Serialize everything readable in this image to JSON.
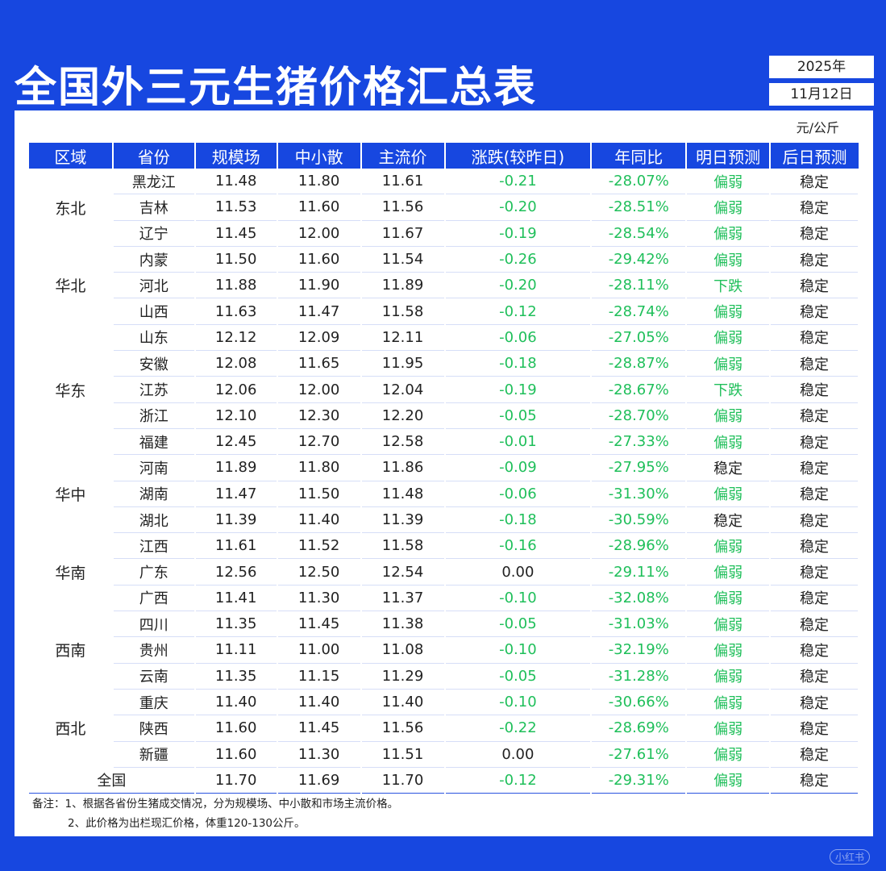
{
  "title": "全国外三元生猪价格汇总表",
  "date": {
    "year": "2025年",
    "day": "11月12日"
  },
  "unit": "元/公斤",
  "headers": [
    "区域",
    "省份",
    "规模场",
    "中小散",
    "主流价",
    "涨跌(较昨日)",
    "年同比",
    "明日预测",
    "后日预测"
  ],
  "regions": [
    {
      "name": "东北",
      "rows": [
        {
          "province": "黑龙江",
          "large": "11.48",
          "small": "11.80",
          "main": "11.61",
          "change": "-0.21",
          "yoy": "-28.07%",
          "tomorrow": "偏弱",
          "after": "稳定"
        },
        {
          "province": "吉林",
          "large": "11.53",
          "small": "11.60",
          "main": "11.56",
          "change": "-0.20",
          "yoy": "-28.51%",
          "tomorrow": "偏弱",
          "after": "稳定"
        },
        {
          "province": "辽宁",
          "large": "11.45",
          "small": "12.00",
          "main": "11.67",
          "change": "-0.19",
          "yoy": "-28.54%",
          "tomorrow": "偏弱",
          "after": "稳定"
        }
      ]
    },
    {
      "name": "华北",
      "rows": [
        {
          "province": "内蒙",
          "large": "11.50",
          "small": "11.60",
          "main": "11.54",
          "change": "-0.26",
          "yoy": "-29.42%",
          "tomorrow": "偏弱",
          "after": "稳定"
        },
        {
          "province": "河北",
          "large": "11.88",
          "small": "11.90",
          "main": "11.89",
          "change": "-0.20",
          "yoy": "-28.11%",
          "tomorrow": "下跌",
          "after": "稳定"
        },
        {
          "province": "山西",
          "large": "11.63",
          "small": "11.47",
          "main": "11.58",
          "change": "-0.12",
          "yoy": "-28.74%",
          "tomorrow": "偏弱",
          "after": "稳定"
        }
      ]
    },
    {
      "name": "华东",
      "rows": [
        {
          "province": "山东",
          "large": "12.12",
          "small": "12.09",
          "main": "12.11",
          "change": "-0.06",
          "yoy": "-27.05%",
          "tomorrow": "偏弱",
          "after": "稳定"
        },
        {
          "province": "安徽",
          "large": "12.08",
          "small": "11.65",
          "main": "11.95",
          "change": "-0.18",
          "yoy": "-28.87%",
          "tomorrow": "偏弱",
          "after": "稳定"
        },
        {
          "province": "江苏",
          "large": "12.06",
          "small": "12.00",
          "main": "12.04",
          "change": "-0.19",
          "yoy": "-28.67%",
          "tomorrow": "下跌",
          "after": "稳定"
        },
        {
          "province": "浙江",
          "large": "12.10",
          "small": "12.30",
          "main": "12.20",
          "change": "-0.05",
          "yoy": "-28.70%",
          "tomorrow": "偏弱",
          "after": "稳定"
        },
        {
          "province": "福建",
          "large": "12.45",
          "small": "12.70",
          "main": "12.58",
          "change": "-0.01",
          "yoy": "-27.33%",
          "tomorrow": "偏弱",
          "after": "稳定"
        }
      ]
    },
    {
      "name": "华中",
      "rows": [
        {
          "province": "河南",
          "large": "11.89",
          "small": "11.80",
          "main": "11.86",
          "change": "-0.09",
          "yoy": "-27.95%",
          "tomorrow": "稳定",
          "after": "稳定"
        },
        {
          "province": "湖南",
          "large": "11.47",
          "small": "11.50",
          "main": "11.48",
          "change": "-0.06",
          "yoy": "-31.30%",
          "tomorrow": "偏弱",
          "after": "稳定"
        },
        {
          "province": "湖北",
          "large": "11.39",
          "small": "11.40",
          "main": "11.39",
          "change": "-0.18",
          "yoy": "-30.59%",
          "tomorrow": "稳定",
          "after": "稳定"
        }
      ]
    },
    {
      "name": "华南",
      "rows": [
        {
          "province": "江西",
          "large": "11.61",
          "small": "11.52",
          "main": "11.58",
          "change": "-0.16",
          "yoy": "-28.96%",
          "tomorrow": "偏弱",
          "after": "稳定"
        },
        {
          "province": "广东",
          "large": "12.56",
          "small": "12.50",
          "main": "12.54",
          "change": "0.00",
          "yoy": "-29.11%",
          "tomorrow": "偏弱",
          "after": "稳定"
        },
        {
          "province": "广西",
          "large": "11.41",
          "small": "11.30",
          "main": "11.37",
          "change": "-0.10",
          "yoy": "-32.08%",
          "tomorrow": "偏弱",
          "after": "稳定"
        }
      ]
    },
    {
      "name": "西南",
      "rows": [
        {
          "province": "四川",
          "large": "11.35",
          "small": "11.45",
          "main": "11.38",
          "change": "-0.05",
          "yoy": "-31.03%",
          "tomorrow": "偏弱",
          "after": "稳定"
        },
        {
          "province": "贵州",
          "large": "11.11",
          "small": "11.00",
          "main": "11.08",
          "change": "-0.10",
          "yoy": "-32.19%",
          "tomorrow": "偏弱",
          "after": "稳定"
        },
        {
          "province": "云南",
          "large": "11.35",
          "small": "11.15",
          "main": "11.29",
          "change": "-0.05",
          "yoy": "-31.28%",
          "tomorrow": "偏弱",
          "after": "稳定"
        }
      ]
    },
    {
      "name": "西北",
      "rows": [
        {
          "province": "重庆",
          "large": "11.40",
          "small": "11.40",
          "main": "11.40",
          "change": "-0.10",
          "yoy": "-30.66%",
          "tomorrow": "偏弱",
          "after": "稳定"
        },
        {
          "province": "陕西",
          "large": "11.60",
          "small": "11.45",
          "main": "11.56",
          "change": "-0.22",
          "yoy": "-28.69%",
          "tomorrow": "偏弱",
          "after": "稳定"
        },
        {
          "province": "新疆",
          "large": "11.60",
          "small": "11.30",
          "main": "11.51",
          "change": "0.00",
          "yoy": "-27.61%",
          "tomorrow": "偏弱",
          "after": "稳定"
        }
      ]
    }
  ],
  "total": {
    "label": "全国",
    "large": "11.70",
    "small": "11.69",
    "main": "11.70",
    "change": "-0.12",
    "yoy": "-29.31%",
    "tomorrow": "偏弱",
    "after": "稳定"
  },
  "notes": [
    "备注：1、根据各省份生猪成交情况，分为规模场、中小散和市场主流价格。",
    "2、此价格为出栏现汇价格，体重120-130公斤。"
  ],
  "watermark": "小红书",
  "colors": {
    "primary": "#1747e0",
    "green": "#1fbf5a"
  }
}
